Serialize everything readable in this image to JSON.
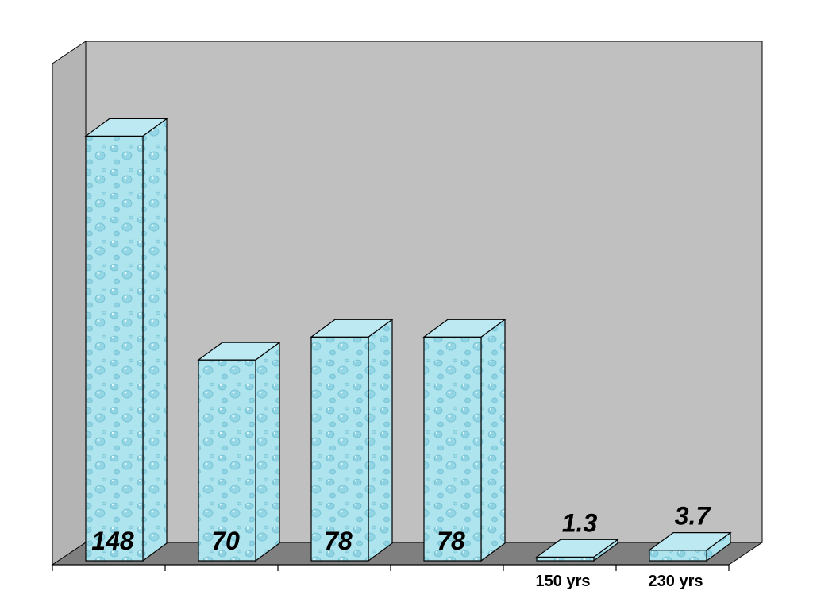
{
  "chart_data": {
    "type": "bar",
    "three_d": true,
    "categories": [
      "",
      "",
      "",
      "",
      "150 yrs",
      "230 yrs"
    ],
    "values": [
      148,
      70,
      78,
      78,
      1.3,
      3.7
    ],
    "data_labels": [
      "148",
      "70",
      "78",
      "78",
      "1.3",
      "3.7"
    ],
    "title": "",
    "xlabel": "",
    "ylabel": "",
    "ylim": [
      0,
      160
    ],
    "grid": false,
    "legend": "none",
    "colors": {
      "back_wall": "#c0c0c0",
      "side_wall": "#b4b4b4",
      "floor": "#7f7f7f",
      "bar_front": "#aee4ee",
      "bar_side": "#c8eef5",
      "bar_top": "#bde9f2",
      "bubble": "#7cc9da",
      "outline": "#000000"
    }
  }
}
